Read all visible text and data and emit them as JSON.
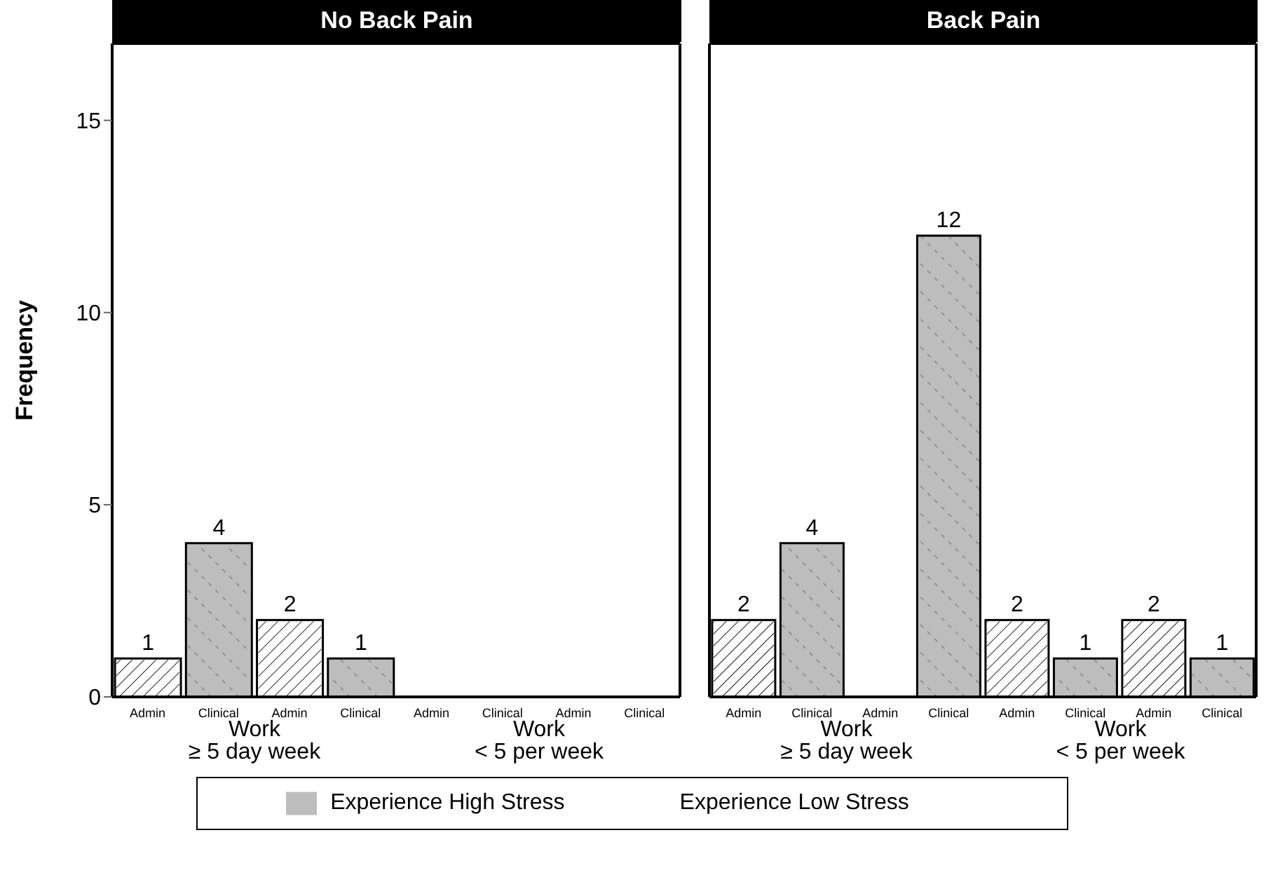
{
  "chart_data": [
    {
      "type": "bar",
      "title": "No Back Pain",
      "ylabel": "Frequency",
      "stacked": true,
      "legend": "bottom",
      "categories": [
        "Admin",
        "Clinical",
        "Admin",
        "Clinical",
        "Admin",
        "Clinical",
        "Admin",
        "Clinical"
      ],
      "series": [
        {
          "name": "Experience Low Stress",
          "color": "#ffffff",
          "values": [
            1,
            null,
            2,
            null,
            0,
            null,
            0,
            null
          ],
          "value_labels": [
            "1",
            null,
            "2",
            null,
            null,
            null,
            null,
            null
          ]
        },
        {
          "name": "Experience High Stress",
          "color": "#bdbdbd",
          "values": [
            null,
            4,
            null,
            1,
            null,
            0,
            null,
            0
          ],
          "value_labels": [
            null,
            "4",
            null,
            "1",
            null,
            null,
            null,
            null
          ]
        }
      ],
      "annotations": [
        "Work\n≥ 5 day week",
        "Work\n< 5 per week"
      ],
      "ylim": [
        0,
        17
      ],
      "yticks": [
        0,
        5,
        10,
        15
      ],
      "grid": false
    },
    {
      "type": "bar",
      "title": "Back Pain",
      "stacked": true,
      "tick_labels": "x",
      "categories": [
        "Admin",
        "Clinical",
        "Admin",
        "Clinical",
        "Admin",
        "Clinical",
        "Admin",
        "Clinical"
      ],
      "series": [
        {
          "color": "#ffffff",
          "values": [
            2,
            null,
            0,
            null,
            2,
            null,
            2,
            null
          ],
          "value_labels": [
            "2",
            null,
            null,
            null,
            "2",
            null,
            "2",
            null
          ]
        },
        {
          "color": "#bdbdbd",
          "values": [
            null,
            4,
            null,
            12,
            null,
            1,
            null,
            1
          ],
          "value_labels": [
            null,
            "4",
            null,
            "12",
            null,
            "1",
            null,
            "1"
          ]
        }
      ],
      "annotations": [
        "Work\n≥ 5 day week",
        "Work\n< 5 per week"
      ],
      "ylim": [
        0,
        17
      ],
      "yticks": [
        0,
        5,
        10,
        15
      ],
      "grid": false
    }
  ]
}
